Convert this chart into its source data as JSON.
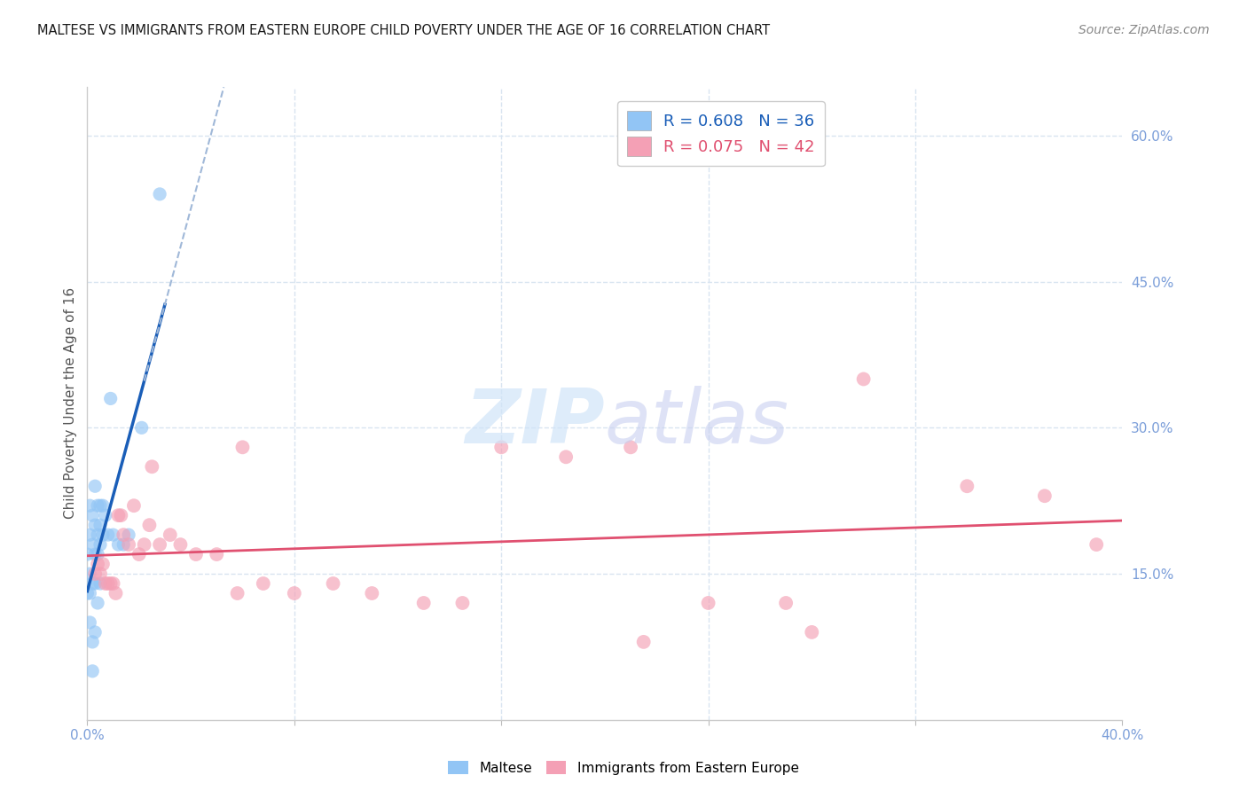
{
  "title": "MALTESE VS IMMIGRANTS FROM EASTERN EUROPE CHILD POVERTY UNDER THE AGE OF 16 CORRELATION CHART",
  "source": "Source: ZipAtlas.com",
  "ylabel": "Child Poverty Under the Age of 16",
  "xlim": [
    0.0,
    0.4
  ],
  "ylim": [
    0.0,
    0.65
  ],
  "x_tick_positions": [
    0.0,
    0.08,
    0.16,
    0.24,
    0.32,
    0.4
  ],
  "x_tick_labels": [
    "0.0%",
    "",
    "",
    "",
    "",
    "40.0%"
  ],
  "y_ticks_right": [
    0.15,
    0.3,
    0.45,
    0.6
  ],
  "y_tick_labels_right": [
    "15.0%",
    "30.0%",
    "45.0%",
    "60.0%"
  ],
  "legend_label1": "R = 0.608   N = 36",
  "legend_label2": "R = 0.075   N = 42",
  "blue_color": "#92c5f5",
  "blue_line_color": "#1a5eb8",
  "pink_color": "#f4a0b5",
  "pink_line_color": "#e05070",
  "dash_color": "#a0b8d8",
  "watermark_zip_color": "#d0e4f8",
  "watermark_atlas_color": "#c8d0f0",
  "title_color": "#1a1a1a",
  "source_color": "#888888",
  "axis_label_color": "#555555",
  "axis_tick_color": "#7b9ed9",
  "grid_color": "#d8e4f0",
  "dot_size_blue": 120,
  "dot_size_pink": 130,
  "dot_alpha": 0.65,
  "background_color": "#ffffff",
  "maltese_x": [
    0.0,
    0.0,
    0.001,
    0.001,
    0.001,
    0.001,
    0.001,
    0.002,
    0.002,
    0.002,
    0.002,
    0.002,
    0.003,
    0.003,
    0.003,
    0.003,
    0.003,
    0.004,
    0.004,
    0.004,
    0.004,
    0.005,
    0.005,
    0.005,
    0.005,
    0.006,
    0.006,
    0.007,
    0.008,
    0.009,
    0.01,
    0.012,
    0.014,
    0.016,
    0.021,
    0.028
  ],
  "maltese_y": [
    0.13,
    0.17,
    0.1,
    0.13,
    0.15,
    0.19,
    0.22,
    0.05,
    0.08,
    0.14,
    0.18,
    0.21,
    0.09,
    0.14,
    0.17,
    0.2,
    0.24,
    0.12,
    0.17,
    0.19,
    0.22,
    0.14,
    0.18,
    0.2,
    0.22,
    0.19,
    0.22,
    0.21,
    0.19,
    0.33,
    0.19,
    0.18,
    0.18,
    0.19,
    0.3,
    0.54
  ],
  "eastern_eu_x": [
    0.003,
    0.004,
    0.005,
    0.006,
    0.007,
    0.008,
    0.009,
    0.01,
    0.011,
    0.012,
    0.013,
    0.014,
    0.016,
    0.018,
    0.02,
    0.022,
    0.024,
    0.028,
    0.032,
    0.036,
    0.042,
    0.05,
    0.058,
    0.068,
    0.08,
    0.095,
    0.11,
    0.13,
    0.16,
    0.185,
    0.21,
    0.24,
    0.27,
    0.3,
    0.34,
    0.37,
    0.39,
    0.025,
    0.06,
    0.145,
    0.215,
    0.28
  ],
  "eastern_eu_y": [
    0.15,
    0.16,
    0.15,
    0.16,
    0.14,
    0.14,
    0.14,
    0.14,
    0.13,
    0.21,
    0.21,
    0.19,
    0.18,
    0.22,
    0.17,
    0.18,
    0.2,
    0.18,
    0.19,
    0.18,
    0.17,
    0.17,
    0.13,
    0.14,
    0.13,
    0.14,
    0.13,
    0.12,
    0.28,
    0.27,
    0.28,
    0.12,
    0.12,
    0.35,
    0.24,
    0.23,
    0.18,
    0.26,
    0.28,
    0.12,
    0.08,
    0.09
  ]
}
